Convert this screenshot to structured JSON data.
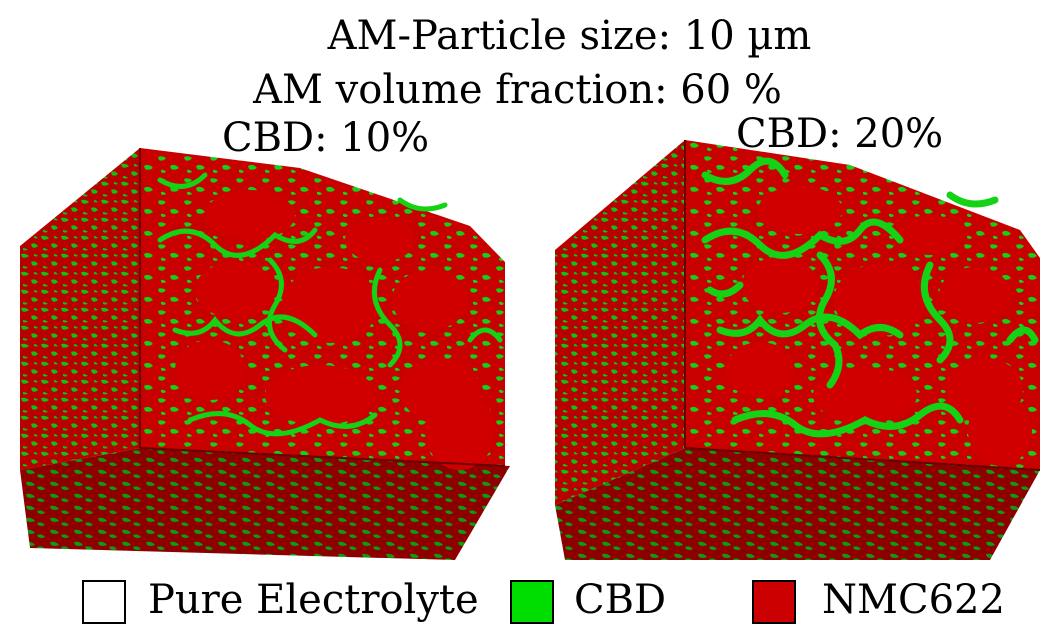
{
  "header": {
    "line1": "AM-Particle size: 10 µm",
    "line2": "AM volume fraction: 60 %"
  },
  "panels": [
    {
      "label": "CBD: 10%"
    },
    {
      "label": "CBD: 20%"
    }
  ],
  "legend": [
    {
      "label": "Pure Electrolyte",
      "color": "#ffffff"
    },
    {
      "label": "CBD",
      "color": "#00dd00"
    },
    {
      "label": "NMC622",
      "color": "#cc0000"
    }
  ],
  "colors": {
    "nmc_front": "#d00000",
    "nmc_side": "#b40000",
    "nmc_dark": "#7a0000",
    "cbd": "#14d214",
    "cbd_dark": "#0a7a0a"
  }
}
